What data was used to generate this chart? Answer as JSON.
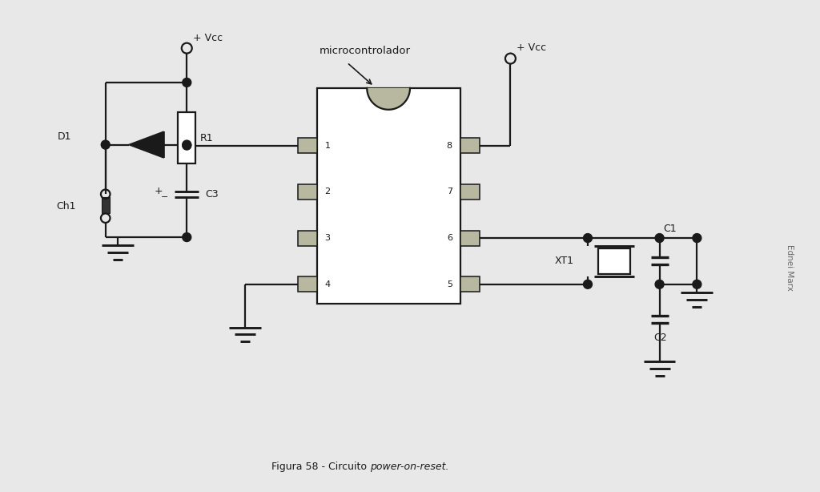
{
  "bg_color": "#e8e8e8",
  "line_color": "#1a1a1a",
  "component_fill": "#b8b8a0",
  "lw": 1.6,
  "fig_width": 10.24,
  "fig_height": 6.14,
  "caption_normal": "Figura 58 - Circuito ",
  "caption_italic": "power-on-reset.",
  "watermark": "Ednei Marx",
  "label_vcc1": "+ Vcc",
  "label_vcc2": "+ Vcc",
  "label_d1": "D1",
  "label_r1": "R1",
  "label_ch1": "Ch1",
  "label_c3": "C3",
  "label_c1": "C1",
  "label_c2": "C2",
  "label_xt1": "XT1",
  "label_mc": "microcontrolador",
  "pin_labels_left": [
    "1",
    "2",
    "3",
    "4"
  ],
  "pin_labels_right": [
    "8",
    "7",
    "6",
    "5"
  ]
}
